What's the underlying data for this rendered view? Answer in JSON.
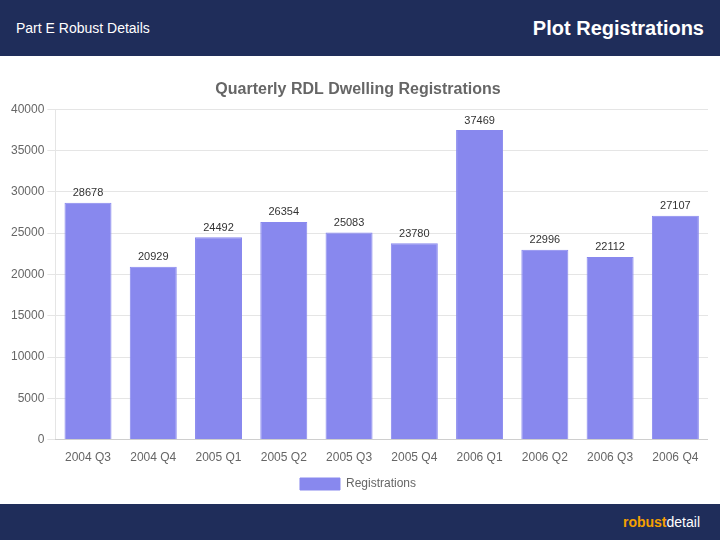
{
  "chart_data": {
    "type": "bar",
    "title": "Quarterly RDL Dwelling Registrations",
    "categories": [
      "2004 Q3",
      "2004 Q4",
      "2005 Q1",
      "2005 Q2",
      "2005 Q3",
      "2005 Q4",
      "2006 Q1",
      "2006 Q2",
      "2006 Q3",
      "2006 Q4"
    ],
    "series": [
      {
        "name": "Registrations",
        "color": "#8888ee",
        "values": [
          28678,
          20929,
          24492,
          26354,
          25083,
          23780,
          37469,
          22996,
          22112,
          27107
        ]
      }
    ],
    "ylim": [
      0,
      40000
    ],
    "yticks": [
      0,
      5000,
      10000,
      15000,
      20000,
      25000,
      30000,
      35000,
      40000
    ],
    "grid": true,
    "legend": "bottom",
    "data_labels": true,
    "annotations": [
      "Part E Robust Details",
      "Plot Registrations",
      "robust",
      "detail"
    ]
  }
}
